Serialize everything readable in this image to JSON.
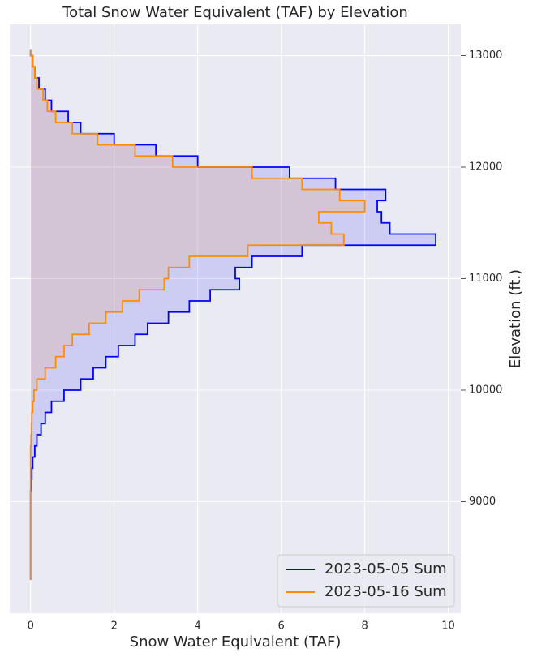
{
  "chart_data": {
    "type": "step-area",
    "orientation": "horizontal",
    "title": "Total Snow Water Equivalent (TAF) by Elevation",
    "xlabel": "Snow Water Equivalent (TAF)",
    "ylabel": "Elevation (ft.)",
    "y": [
      8300,
      8400,
      8500,
      8600,
      8700,
      8800,
      8900,
      9000,
      9100,
      9200,
      9300,
      9400,
      9500,
      9600,
      9700,
      9800,
      9900,
      10000,
      10100,
      10200,
      10300,
      10400,
      10500,
      10600,
      10700,
      10800,
      10900,
      11000,
      11100,
      11200,
      11300,
      11400,
      11500,
      11600,
      11700,
      11800,
      11900,
      12000,
      12100,
      12200,
      12300,
      12400,
      12500,
      12600,
      12700,
      12800,
      12900,
      13000
    ],
    "series": [
      {
        "name": "2023-05-05 Sum",
        "color": "#0000ff",
        "values": [
          0,
          0,
          0,
          0,
          0,
          0,
          0,
          0,
          0.01,
          0.03,
          0.05,
          0.1,
          0.15,
          0.25,
          0.35,
          0.5,
          0.8,
          1.2,
          1.5,
          1.8,
          2.1,
          2.5,
          2.8,
          3.3,
          3.8,
          4.3,
          5.0,
          4.9,
          5.3,
          6.5,
          9.7,
          8.6,
          8.4,
          8.3,
          8.5,
          7.3,
          6.2,
          4.0,
          3.0,
          2.0,
          1.2,
          0.9,
          0.5,
          0.35,
          0.2,
          0.1,
          0.05,
          0
        ]
      },
      {
        "name": "2023-05-16 Sum",
        "color": "#ff8c00",
        "values": [
          0,
          0,
          0,
          0,
          0,
          0,
          0,
          0,
          0,
          0,
          0,
          0,
          0.01,
          0.02,
          0.03,
          0.05,
          0.08,
          0.15,
          0.35,
          0.6,
          0.8,
          1.0,
          1.4,
          1.8,
          2.2,
          2.6,
          3.2,
          3.3,
          3.8,
          5.2,
          7.5,
          7.2,
          6.9,
          8.0,
          7.4,
          6.5,
          5.3,
          3.4,
          2.5,
          1.6,
          1.0,
          0.6,
          0.4,
          0.3,
          0.15,
          0.1,
          0.05,
          0
        ]
      }
    ],
    "xlim": [
      -0.5,
      10.3
    ],
    "ylim": [
      8000,
      13280
    ],
    "xticks": [
      0,
      2,
      4,
      6,
      8,
      10
    ],
    "yticks": [
      9000,
      10000,
      11000,
      12000,
      13000
    ],
    "grid": true,
    "legend": "lower right"
  }
}
